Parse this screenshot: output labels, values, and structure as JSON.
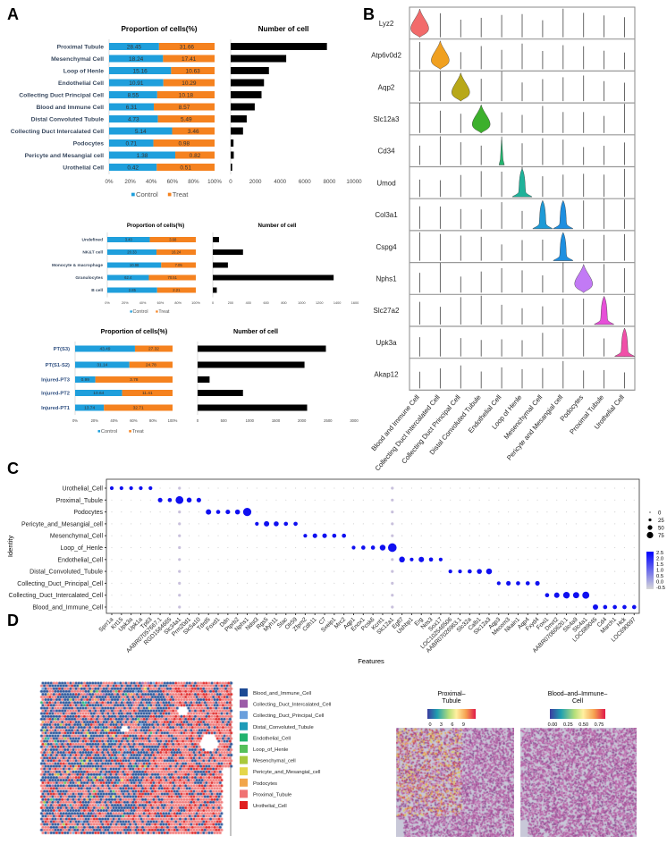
{
  "panel_labels": {
    "a": "A",
    "b": "B",
    "c": "C",
    "d": "D"
  },
  "colors": {
    "control": "#1f9fdc",
    "treat": "#f5821f",
    "count": "#000000",
    "dot_high": "#0000ff",
    "dot_low": "#d0d0d0"
  },
  "chart_data": [
    {
      "type": "bar",
      "id": "a1",
      "title_prop": "Proportion of cells(%)",
      "title_count": "Number of cell",
      "categories": [
        "Proximal Tubule",
        "Mesenchymal Cell",
        "Loop of Henle",
        "Endothelial Cell",
        "Collecting Duct Principal Cell",
        "Blood and Immune Cell",
        "Distal Convoluted Tubule",
        "Collecting Duct Intercalated Cell",
        "Podocytes",
        "Pericyte and Mesangial cell",
        "Urothelial Cell"
      ],
      "control": [
        "28.45",
        "18.24",
        "15.16",
        "10.91",
        "8.55",
        "6.31",
        "4.73",
        "5.14",
        "0.71",
        "1.38",
        "0.42"
      ],
      "treat": [
        "31.66",
        "17.41",
        "10.63",
        "10.29",
        "10.18",
        "8.57",
        "5.49",
        "3.46",
        "0.98",
        "0.82",
        "0.51"
      ],
      "counts": [
        7800,
        4500,
        3100,
        2700,
        2500,
        1950,
        1300,
        1000,
        230,
        250,
        120
      ],
      "prop_ticks": [
        "0%",
        "20%",
        "40%",
        "60%",
        "80%",
        "100%"
      ],
      "count_ticks": [
        "0",
        "2000",
        "4000",
        "6000",
        "8000",
        "10000"
      ],
      "count_max": 10000,
      "legend": [
        "Control",
        "Treat"
      ]
    },
    {
      "type": "bar",
      "id": "a2",
      "title_prop": "Proportion of cells(%)",
      "title_count": "Number of cell",
      "categories": [
        "Undefined",
        "NK&T cell",
        "Monocyte & macrophage",
        "Granulocytes",
        "B cell"
      ],
      "control": [
        "3.40",
        "20.33",
        "10.98",
        "62.4",
        "2.85"
      ],
      "treat": [
        "3.68",
        "16.24",
        "7.05",
        "70.51",
        "2.21"
      ],
      "counts": [
        70,
        340,
        170,
        1360,
        45
      ],
      "prop_ticks": [
        "0%",
        "20%",
        "40%",
        "60%",
        "80%",
        "100%"
      ],
      "count_ticks": [
        "0",
        "200",
        "400",
        "600",
        "800",
        "1000",
        "1200",
        "1400",
        "1600"
      ],
      "count_max": 1600,
      "legend": [
        "Control",
        "Treat"
      ]
    },
    {
      "type": "bar",
      "id": "a3",
      "title_prop": "Proportion of cells(%)",
      "title_count": "Number of cell",
      "categories": [
        "PT(S3)",
        "PT(S1-S2)",
        "Injured-PT3",
        "Injured-PT2",
        "Injured-PT1"
      ],
      "control": [
        "43.49",
        "31.14",
        "0.99",
        "10.64",
        "13.74"
      ],
      "treat": [
        "27.32",
        "24.78",
        "3.78",
        "11.41",
        "32.71"
      ],
      "counts": [
        2460,
        2050,
        230,
        870,
        2100
      ],
      "prop_ticks": [
        "0%",
        "20%",
        "40%",
        "60%",
        "80%",
        "100%"
      ],
      "count_ticks": [
        "0",
        "500",
        "1000",
        "1500",
        "2000",
        "2500",
        "3000"
      ],
      "count_max": 3000,
      "legend": [
        "Control",
        "Treat"
      ]
    },
    {
      "type": "violin",
      "id": "b",
      "genes": [
        "Lyz2",
        "Atp6v0d2",
        "Aqp2",
        "Slc12a3",
        "Cd34",
        "Umod",
        "Col3a1",
        "Cspg4",
        "Nphs1",
        "Slc27a2",
        "Upk3a",
        "Akap12"
      ],
      "cells": [
        "Blood and Immune Cell",
        "Collecting Duct Intercalated Cell",
        "Collecting Duct Principal Cell",
        "Distal Convoluted Tubule",
        "Endothelial Cell",
        "Loop of Henle",
        "Mesenchymal Cell",
        "Pericyte and Mesangial cell",
        "Podocytes",
        "Proximal Tubule",
        "Urothelial Cell"
      ],
      "violins": [
        {
          "gene": 0,
          "cell": 0,
          "color": "#f26b6b",
          "shape": "bulb"
        },
        {
          "gene": 1,
          "cell": 1,
          "color": "#f0a020",
          "shape": "bulb"
        },
        {
          "gene": 2,
          "cell": 2,
          "color": "#b8a818",
          "shape": "bulb"
        },
        {
          "gene": 3,
          "cell": 3,
          "color": "#3cb02c",
          "shape": "bulb"
        },
        {
          "gene": 4,
          "cell": 4,
          "color": "#22b46e",
          "shape": "thin"
        },
        {
          "gene": 5,
          "cell": 5,
          "color": "#1fb29a",
          "shape": "base"
        },
        {
          "gene": 6,
          "cell": 6,
          "color": "#1e9ad6",
          "shape": "base"
        },
        {
          "gene": 6,
          "cell": 7,
          "color": "#1e8fe0",
          "shape": "base"
        },
        {
          "gene": 7,
          "cell": 7,
          "color": "#1e8fe0",
          "shape": "base"
        },
        {
          "gene": 8,
          "cell": 8,
          "color": "#c27af5",
          "shape": "bulb"
        },
        {
          "gene": 9,
          "cell": 9,
          "color": "#e64fd8",
          "shape": "base"
        },
        {
          "gene": 10,
          "cell": 10,
          "color": "#f04fa8",
          "shape": "base"
        }
      ]
    },
    {
      "type": "scatter",
      "subtype": "dotplot",
      "id": "c",
      "xlabel": "Features",
      "ylabel": "Identity",
      "identities": [
        "Urothelial_Cell",
        "Proximal_Tubule",
        "Podocytes",
        "Pericyte_and_Mesangial_cell",
        "Mesenchymal_Cell",
        "Loop_of_Henle",
        "Endothelial_Cell",
        "Distal_Convoluted_Tubule",
        "Collecting_Duct_Principal_Cell",
        "Collecting_Duct_Intercalated_Cell",
        "Blood_and_Immune_Cell"
      ],
      "features": [
        "Sprr1a",
        "Krt15",
        "Upk3a",
        "Upk1a",
        "Tp63",
        "AABR07057667.1",
        "RGD1564665",
        "Slc34a1",
        "Prm20d1",
        "Slc5a10",
        "Tdrd5",
        "Foxd1",
        "Ddn",
        "Ptprb2",
        "Nphs1",
        "Ndst3",
        "Rgs5",
        "Myh11",
        "Stac",
        "Olr59",
        "Zfpm2",
        "Cdh11",
        "C7",
        "Sxeip1",
        "Mrc2",
        "Aqp1",
        "Enox1",
        "Pcsk6",
        "Kcnt1",
        "Slc12a1",
        "Egfl7",
        "Ushbp1",
        "Erg",
        "Nos3",
        "Sox17",
        "LOC102546506",
        "AABR07026963.1",
        "Slc32a",
        "Calb1",
        "Slc12a3",
        "Aqp3",
        "Mecom3",
        "Nkain1",
        "Aqp4",
        "Fxyd4",
        "Foxi1",
        "Dmrt2",
        "AABR07060620.1",
        "Slc4a9",
        "Slc4a1",
        "LOC689045",
        "Cd4",
        "March1",
        "Hck",
        "LOC690097"
      ],
      "marker_pct": [
        [
          20,
          20,
          20,
          20,
          20
        ],
        [
          30,
          25,
          70,
          35,
          30
        ],
        [
          40,
          25,
          30,
          35,
          75
        ],
        [
          20,
          40,
          35,
          25,
          25
        ],
        [
          20,
          30,
          30,
          25,
          25
        ],
        [
          20,
          25,
          25,
          45,
          80
        ],
        [
          45,
          20,
          40,
          25,
          20
        ],
        [
          20,
          20,
          25,
          35,
          45
        ],
        [
          20,
          30,
          25,
          25,
          30
        ],
        [
          25,
          40,
          55,
          50,
          60
        ],
        [
          40,
          25,
          25,
          25,
          25
        ]
      ],
      "size_legend": [
        "0",
        "25",
        "50",
        "75"
      ],
      "color_legend": [
        "2.5",
        "2.0",
        "1.5",
        "1.0",
        "0.5",
        "0.0",
        "-0.5"
      ]
    }
  ],
  "panel_d": {
    "legend": [
      {
        "label": "Blood_and_Immune_Cell",
        "color": "#1c4a94"
      },
      {
        "label": "Collecting_Duct_Intercalated_Cell",
        "color": "#9c5ca8"
      },
      {
        "label": "Collecting_Duct_Principal_Cell",
        "color": "#6a9fdc"
      },
      {
        "label": "Distal_Convoluted_Tubule",
        "color": "#1e9bb8"
      },
      {
        "label": "Endothelial_Cell",
        "color": "#22b36e"
      },
      {
        "label": "Loop_of_Henle",
        "color": "#56c05a"
      },
      {
        "label": "Mesenchymal_cell",
        "color": "#a9c93c"
      },
      {
        "label": "Pericyte_and_Mesangial_cell",
        "color": "#e4d64a"
      },
      {
        "label": "Podocytes",
        "color": "#f2a54a"
      },
      {
        "label": "Proximal_Tubule",
        "color": "#f07272"
      },
      {
        "label": "Urothelial_Cell",
        "color": "#e01e1e"
      }
    ],
    "map1": {
      "title_1": "Proximal–",
      "title_2": "Tubule",
      "ticks": [
        "0",
        "3",
        "6",
        "9"
      ]
    },
    "map2": {
      "title_1": "Blood–and–Immune–",
      "title_2": "Cell",
      "ticks": [
        "0.00",
        "0.25",
        "0.50",
        "0.75"
      ]
    }
  }
}
